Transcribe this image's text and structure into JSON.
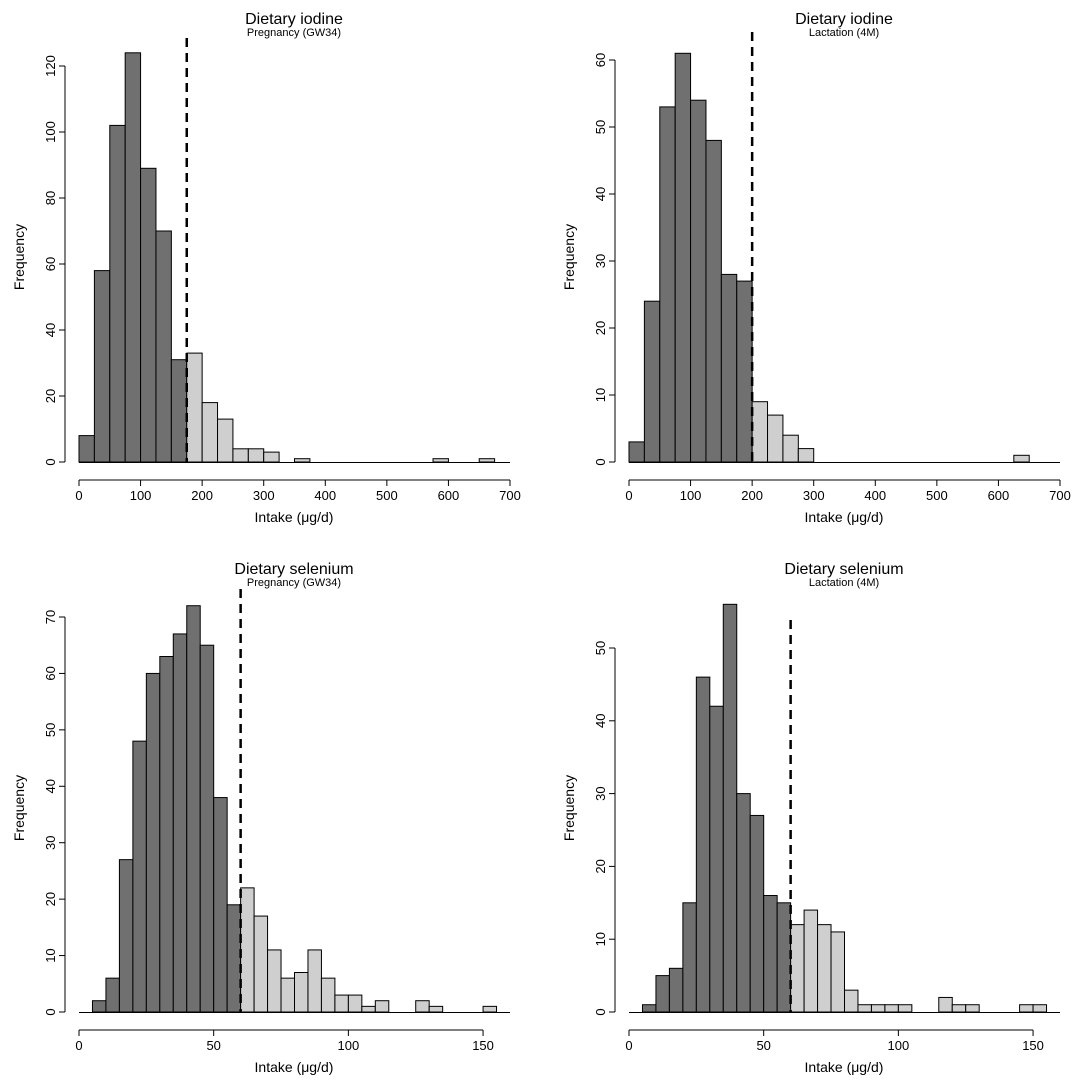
{
  "colors": {
    "below": "#707070",
    "above": "#cfcfcf",
    "outline": "#000000",
    "cutoff": "#000000"
  },
  "chart_data": [
    {
      "type": "bar",
      "title": "Dietary iodine",
      "subtitle": "Pregnancy (GW34)",
      "xlabel": "Intake (μg/d)",
      "ylabel": "Frequency",
      "xlim": [
        0,
        700
      ],
      "ylim": [
        0,
        120
      ],
      "xticks": [
        0,
        100,
        200,
        300,
        400,
        500,
        600,
        700
      ],
      "yticks": [
        0,
        20,
        40,
        60,
        80,
        100,
        120
      ],
      "bin_width": 25,
      "cutoff": 175,
      "bins": [
        {
          "start": 0,
          "count": 8
        },
        {
          "start": 25,
          "count": 58
        },
        {
          "start": 50,
          "count": 102
        },
        {
          "start": 75,
          "count": 124
        },
        {
          "start": 100,
          "count": 89
        },
        {
          "start": 125,
          "count": 70
        },
        {
          "start": 150,
          "count": 31
        },
        {
          "start": 175,
          "count": 33
        },
        {
          "start": 200,
          "count": 18
        },
        {
          "start": 225,
          "count": 13
        },
        {
          "start": 250,
          "count": 4
        },
        {
          "start": 275,
          "count": 4
        },
        {
          "start": 300,
          "count": 3
        },
        {
          "start": 325,
          "count": 0
        },
        {
          "start": 350,
          "count": 1
        },
        {
          "start": 575,
          "count": 1
        },
        {
          "start": 650,
          "count": 1
        }
      ]
    },
    {
      "type": "bar",
      "title": "Dietary iodine",
      "subtitle": "Lactation (4M)",
      "xlabel": "Intake (μg/d)",
      "ylabel": "Frequency",
      "xlim": [
        0,
        700
      ],
      "ylim": [
        0,
        60
      ],
      "xticks": [
        0,
        100,
        200,
        300,
        400,
        500,
        600,
        700
      ],
      "yticks": [
        0,
        10,
        20,
        30,
        40,
        50,
        60
      ],
      "bin_width": 25,
      "cutoff": 200,
      "bins": [
        {
          "start": 0,
          "count": 3
        },
        {
          "start": 25,
          "count": 24
        },
        {
          "start": 50,
          "count": 53
        },
        {
          "start": 75,
          "count": 61
        },
        {
          "start": 100,
          "count": 54
        },
        {
          "start": 125,
          "count": 48
        },
        {
          "start": 150,
          "count": 28
        },
        {
          "start": 175,
          "count": 27
        },
        {
          "start": 200,
          "count": 9
        },
        {
          "start": 225,
          "count": 7
        },
        {
          "start": 250,
          "count": 4
        },
        {
          "start": 275,
          "count": 2
        },
        {
          "start": 625,
          "count": 1
        }
      ]
    },
    {
      "type": "bar",
      "title": "Dietary selenium",
      "subtitle": "Pregnancy (GW34)",
      "xlabel": "Intake (μg/d)",
      "ylabel": "Frequency",
      "xlim": [
        0,
        160
      ],
      "ylim": [
        0,
        70
      ],
      "xticks": [
        0,
        50,
        100,
        150
      ],
      "yticks": [
        0,
        10,
        20,
        30,
        40,
        50,
        60,
        70
      ],
      "bin_width": 5,
      "cutoff": 60,
      "bins": [
        {
          "start": 5,
          "count": 2
        },
        {
          "start": 10,
          "count": 6
        },
        {
          "start": 15,
          "count": 27
        },
        {
          "start": 20,
          "count": 48
        },
        {
          "start": 25,
          "count": 60
        },
        {
          "start": 30,
          "count": 63
        },
        {
          "start": 35,
          "count": 67
        },
        {
          "start": 40,
          "count": 72
        },
        {
          "start": 45,
          "count": 65
        },
        {
          "start": 50,
          "count": 38
        },
        {
          "start": 55,
          "count": 19
        },
        {
          "start": 60,
          "count": 22
        },
        {
          "start": 65,
          "count": 17
        },
        {
          "start": 70,
          "count": 11
        },
        {
          "start": 75,
          "count": 6
        },
        {
          "start": 80,
          "count": 7
        },
        {
          "start": 85,
          "count": 11
        },
        {
          "start": 90,
          "count": 6
        },
        {
          "start": 95,
          "count": 3
        },
        {
          "start": 100,
          "count": 3
        },
        {
          "start": 105,
          "count": 1
        },
        {
          "start": 110,
          "count": 2
        },
        {
          "start": 115,
          "count": 0
        },
        {
          "start": 120,
          "count": 0
        },
        {
          "start": 125,
          "count": 2
        },
        {
          "start": 130,
          "count": 1
        },
        {
          "start": 150,
          "count": 1
        }
      ]
    },
    {
      "type": "bar",
      "title": "Dietary selenium",
      "subtitle": "Lactation (4M)",
      "xlabel": "Intake (μg/d)",
      "ylabel": "Frequency",
      "xlim": [
        0,
        160
      ],
      "ylim": [
        0,
        56
      ],
      "xticks": [
        0,
        50,
        100,
        150
      ],
      "yticks": [
        0,
        10,
        20,
        30,
        40,
        50
      ],
      "bin_width": 5,
      "cutoff": 60,
      "bins": [
        {
          "start": 5,
          "count": 1
        },
        {
          "start": 10,
          "count": 5
        },
        {
          "start": 15,
          "count": 6
        },
        {
          "start": 20,
          "count": 15
        },
        {
          "start": 25,
          "count": 46
        },
        {
          "start": 30,
          "count": 42
        },
        {
          "start": 35,
          "count": 56
        },
        {
          "start": 40,
          "count": 30
        },
        {
          "start": 45,
          "count": 27
        },
        {
          "start": 50,
          "count": 16
        },
        {
          "start": 55,
          "count": 15
        },
        {
          "start": 60,
          "count": 12
        },
        {
          "start": 65,
          "count": 14
        },
        {
          "start": 70,
          "count": 12
        },
        {
          "start": 75,
          "count": 11
        },
        {
          "start": 80,
          "count": 3
        },
        {
          "start": 85,
          "count": 1
        },
        {
          "start": 90,
          "count": 1
        },
        {
          "start": 95,
          "count": 1
        },
        {
          "start": 100,
          "count": 1
        },
        {
          "start": 115,
          "count": 2
        },
        {
          "start": 120,
          "count": 1
        },
        {
          "start": 125,
          "count": 1
        },
        {
          "start": 145,
          "count": 1
        },
        {
          "start": 150,
          "count": 1
        }
      ]
    }
  ]
}
